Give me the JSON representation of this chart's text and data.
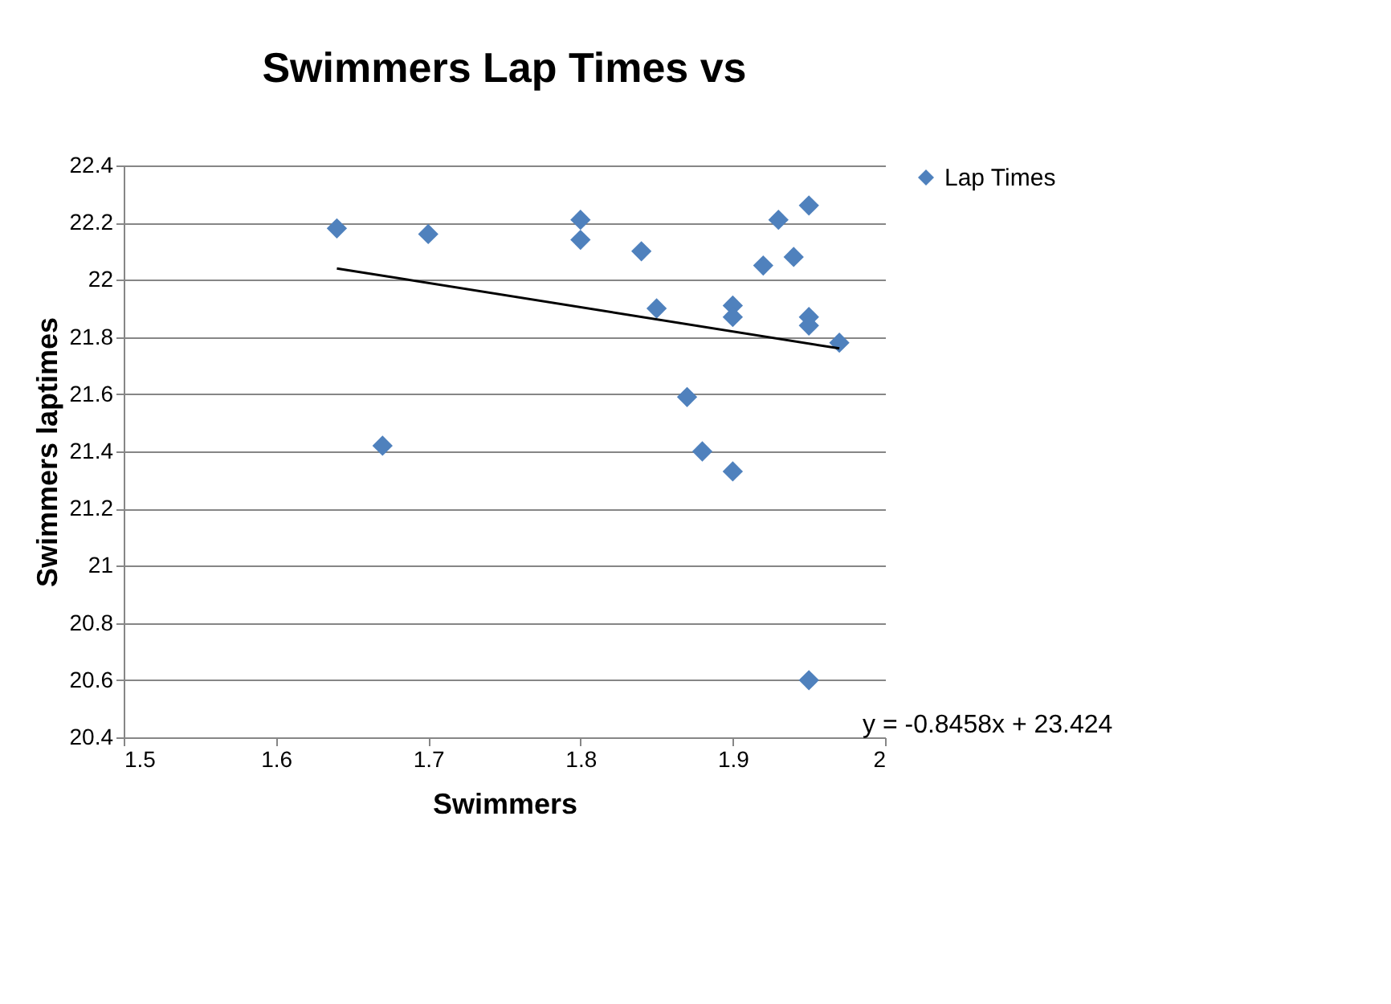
{
  "chart_data": {
    "type": "scatter",
    "title": "Swimmers Lap Times vs",
    "xlabel": "Swimmers",
    "ylabel": "Swimmers laptimes",
    "xlim": [
      1.5,
      2
    ],
    "xticks": [
      1.5,
      1.6,
      1.7,
      1.8,
      1.9,
      2
    ],
    "ylim": [
      20.4,
      22.4
    ],
    "yticks": [
      20.4,
      20.6,
      20.8,
      21,
      21.2,
      21.4,
      21.6,
      21.8,
      22,
      22.2,
      22.4
    ],
    "grid": "y",
    "legend": "right",
    "series": [
      {
        "name": "Lap Times",
        "color": "#4f81bd",
        "marker": "diamond",
        "x": [
          1.64,
          1.67,
          1.7,
          1.8,
          1.8,
          1.84,
          1.85,
          1.9,
          1.9,
          1.87,
          1.88,
          1.9,
          1.92,
          1.93,
          1.94,
          1.95,
          1.95,
          1.95,
          1.97,
          1.95
        ],
        "values": [
          22.18,
          21.42,
          22.16,
          22.21,
          22.14,
          22.1,
          21.9,
          21.91,
          21.87,
          21.59,
          21.4,
          21.33,
          22.05,
          22.21,
          22.08,
          22.26,
          21.87,
          21.84,
          21.78,
          20.6
        ]
      },
      {
        "type": "line",
        "color": "#000000",
        "x": [
          1.64,
          1.97
        ],
        "values": [
          22.04,
          21.76
        ]
      }
    ],
    "annotations": [
      "y = -0.8458x + 23.424"
    ]
  }
}
